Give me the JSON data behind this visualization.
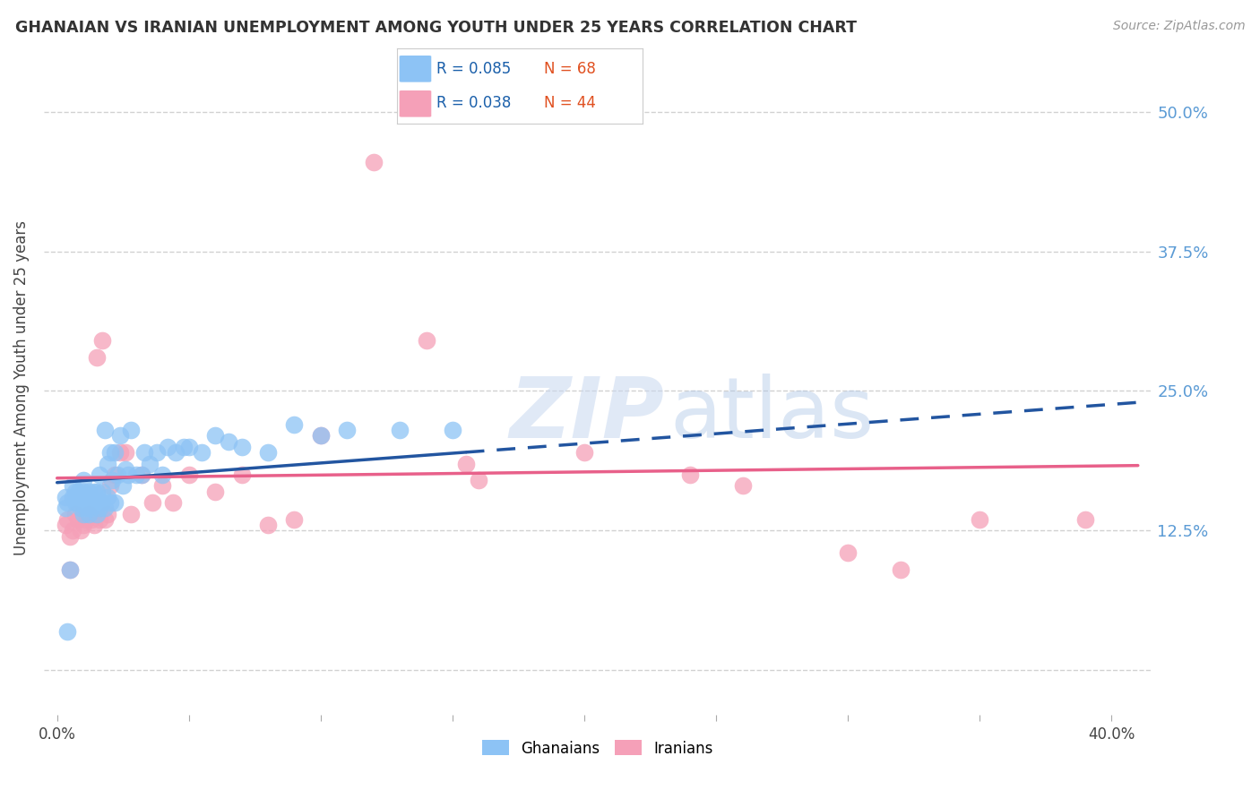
{
  "title": "GHANAIAN VS IRANIAN UNEMPLOYMENT AMONG YOUTH UNDER 25 YEARS CORRELATION CHART",
  "source": "Source: ZipAtlas.com",
  "ylabel": "Unemployment Among Youth under 25 years",
  "x_ticks": [
    0.0,
    0.05,
    0.1,
    0.15,
    0.2,
    0.25,
    0.3,
    0.35,
    0.4
  ],
  "y_ticks": [
    0.0,
    0.125,
    0.25,
    0.375,
    0.5
  ],
  "xlim": [
    -0.005,
    0.415
  ],
  "ylim": [
    -0.04,
    0.545
  ],
  "ghanaian_color": "#8dc3f5",
  "iranian_color": "#f5a0b8",
  "ghanaian_line_color": "#2255a0",
  "iranian_line_color": "#e8608a",
  "watermark_zip": "ZIP",
  "watermark_atlas": "atlas",
  "ghanaian_label": "Ghanaians",
  "iranian_label": "Iranians",
  "background_color": "#ffffff",
  "grid_color": "#cccccc",
  "ghanaian_x": [
    0.003,
    0.003,
    0.004,
    0.005,
    0.006,
    0.006,
    0.007,
    0.007,
    0.008,
    0.008,
    0.009,
    0.009,
    0.01,
    0.01,
    0.01,
    0.01,
    0.011,
    0.011,
    0.012,
    0.012,
    0.012,
    0.013,
    0.013,
    0.014,
    0.014,
    0.015,
    0.015,
    0.015,
    0.016,
    0.016,
    0.017,
    0.017,
    0.018,
    0.018,
    0.019,
    0.019,
    0.02,
    0.02,
    0.021,
    0.022,
    0.022,
    0.023,
    0.024,
    0.025,
    0.026,
    0.027,
    0.028,
    0.03,
    0.032,
    0.033,
    0.035,
    0.038,
    0.04,
    0.042,
    0.045,
    0.048,
    0.05,
    0.055,
    0.06,
    0.065,
    0.07,
    0.08,
    0.09,
    0.1,
    0.11,
    0.13,
    0.15,
    0.004
  ],
  "ghanaian_y": [
    0.155,
    0.145,
    0.15,
    0.09,
    0.155,
    0.165,
    0.15,
    0.16,
    0.15,
    0.16,
    0.145,
    0.155,
    0.14,
    0.15,
    0.16,
    0.17,
    0.145,
    0.155,
    0.14,
    0.15,
    0.16,
    0.145,
    0.155,
    0.15,
    0.16,
    0.14,
    0.15,
    0.16,
    0.145,
    0.175,
    0.15,
    0.16,
    0.145,
    0.215,
    0.155,
    0.185,
    0.15,
    0.195,
    0.17,
    0.15,
    0.195,
    0.175,
    0.21,
    0.165,
    0.18,
    0.175,
    0.215,
    0.175,
    0.175,
    0.195,
    0.185,
    0.195,
    0.175,
    0.2,
    0.195,
    0.2,
    0.2,
    0.195,
    0.21,
    0.205,
    0.2,
    0.195,
    0.22,
    0.21,
    0.215,
    0.215,
    0.215,
    0.035
  ],
  "iranian_x": [
    0.003,
    0.004,
    0.005,
    0.006,
    0.007,
    0.008,
    0.009,
    0.01,
    0.011,
    0.012,
    0.013,
    0.014,
    0.015,
    0.016,
    0.017,
    0.018,
    0.019,
    0.02,
    0.022,
    0.024,
    0.026,
    0.028,
    0.032,
    0.036,
    0.04,
    0.044,
    0.05,
    0.06,
    0.07,
    0.08,
    0.09,
    0.1,
    0.12,
    0.14,
    0.155,
    0.16,
    0.2,
    0.24,
    0.26,
    0.3,
    0.32,
    0.35,
    0.39,
    0.005
  ],
  "iranian_y": [
    0.13,
    0.135,
    0.12,
    0.125,
    0.14,
    0.135,
    0.125,
    0.13,
    0.135,
    0.14,
    0.135,
    0.13,
    0.28,
    0.135,
    0.295,
    0.135,
    0.14,
    0.165,
    0.175,
    0.195,
    0.195,
    0.14,
    0.175,
    0.15,
    0.165,
    0.15,
    0.175,
    0.16,
    0.175,
    0.13,
    0.135,
    0.21,
    0.455,
    0.295,
    0.185,
    0.17,
    0.195,
    0.175,
    0.165,
    0.105,
    0.09,
    0.135,
    0.135,
    0.09
  ],
  "trend_blue_x0": 0.0,
  "trend_blue_y0": 0.168,
  "trend_blue_x1": 0.4,
  "trend_blue_y1": 0.238,
  "trend_blue_solid_end": 0.155,
  "trend_pink_x0": 0.0,
  "trend_pink_y0": 0.172,
  "trend_pink_x1": 0.4,
  "trend_pink_y1": 0.183
}
